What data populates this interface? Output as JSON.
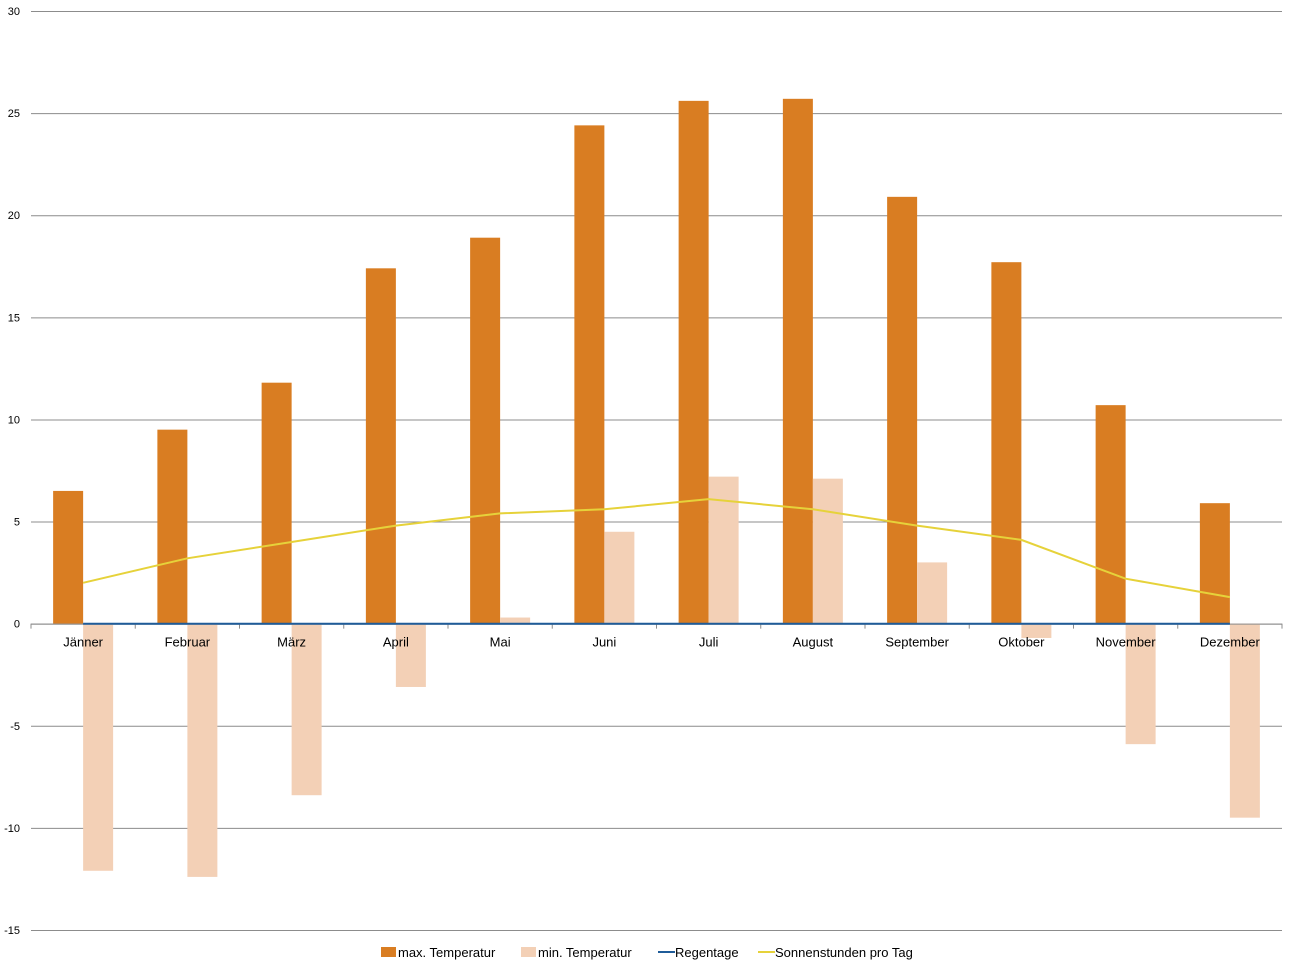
{
  "chart_data": {
    "type": "bar",
    "categories": [
      "Jänner",
      "Februar",
      "März",
      "April",
      "Mai",
      "Juni",
      "Juli",
      "August",
      "September",
      "Oktober",
      "November",
      "Dezember"
    ],
    "series": [
      {
        "name": "max. Temperatur",
        "kind": "bar",
        "color": "#D97D22",
        "values": [
          6.5,
          9.5,
          11.8,
          17.4,
          18.9,
          24.4,
          25.6,
          25.7,
          20.9,
          17.7,
          10.7,
          5.9
        ]
      },
      {
        "name": "min. Temperatur",
        "kind": "bar",
        "color": "#F3D0B6",
        "values": [
          -12.1,
          -12.4,
          -8.4,
          -3.1,
          0.3,
          4.5,
          7.2,
          7.1,
          3.0,
          -0.7,
          -5.9,
          -9.5
        ]
      },
      {
        "name": "Regentage",
        "kind": "line",
        "color": "#1F5C99",
        "values": [
          0,
          0,
          0,
          0,
          0,
          0,
          0,
          0,
          0,
          0,
          0,
          0
        ]
      },
      {
        "name": "Sonnenstunden pro Tag",
        "kind": "line",
        "color": "#E6D23A",
        "values": [
          2.0,
          3.2,
          4.0,
          4.8,
          5.4,
          5.6,
          6.1,
          5.6,
          4.8,
          4.1,
          2.2,
          1.3
        ]
      }
    ],
    "yticks": [
      "30",
      "25",
      "20",
      "15",
      "10",
      "5",
      "0",
      "-5",
      "-10",
      "-15"
    ],
    "ylim": [
      -15,
      30
    ],
    "grid": true,
    "legend_position": "bottom",
    "title": "",
    "xlabel": "",
    "ylabel": ""
  }
}
